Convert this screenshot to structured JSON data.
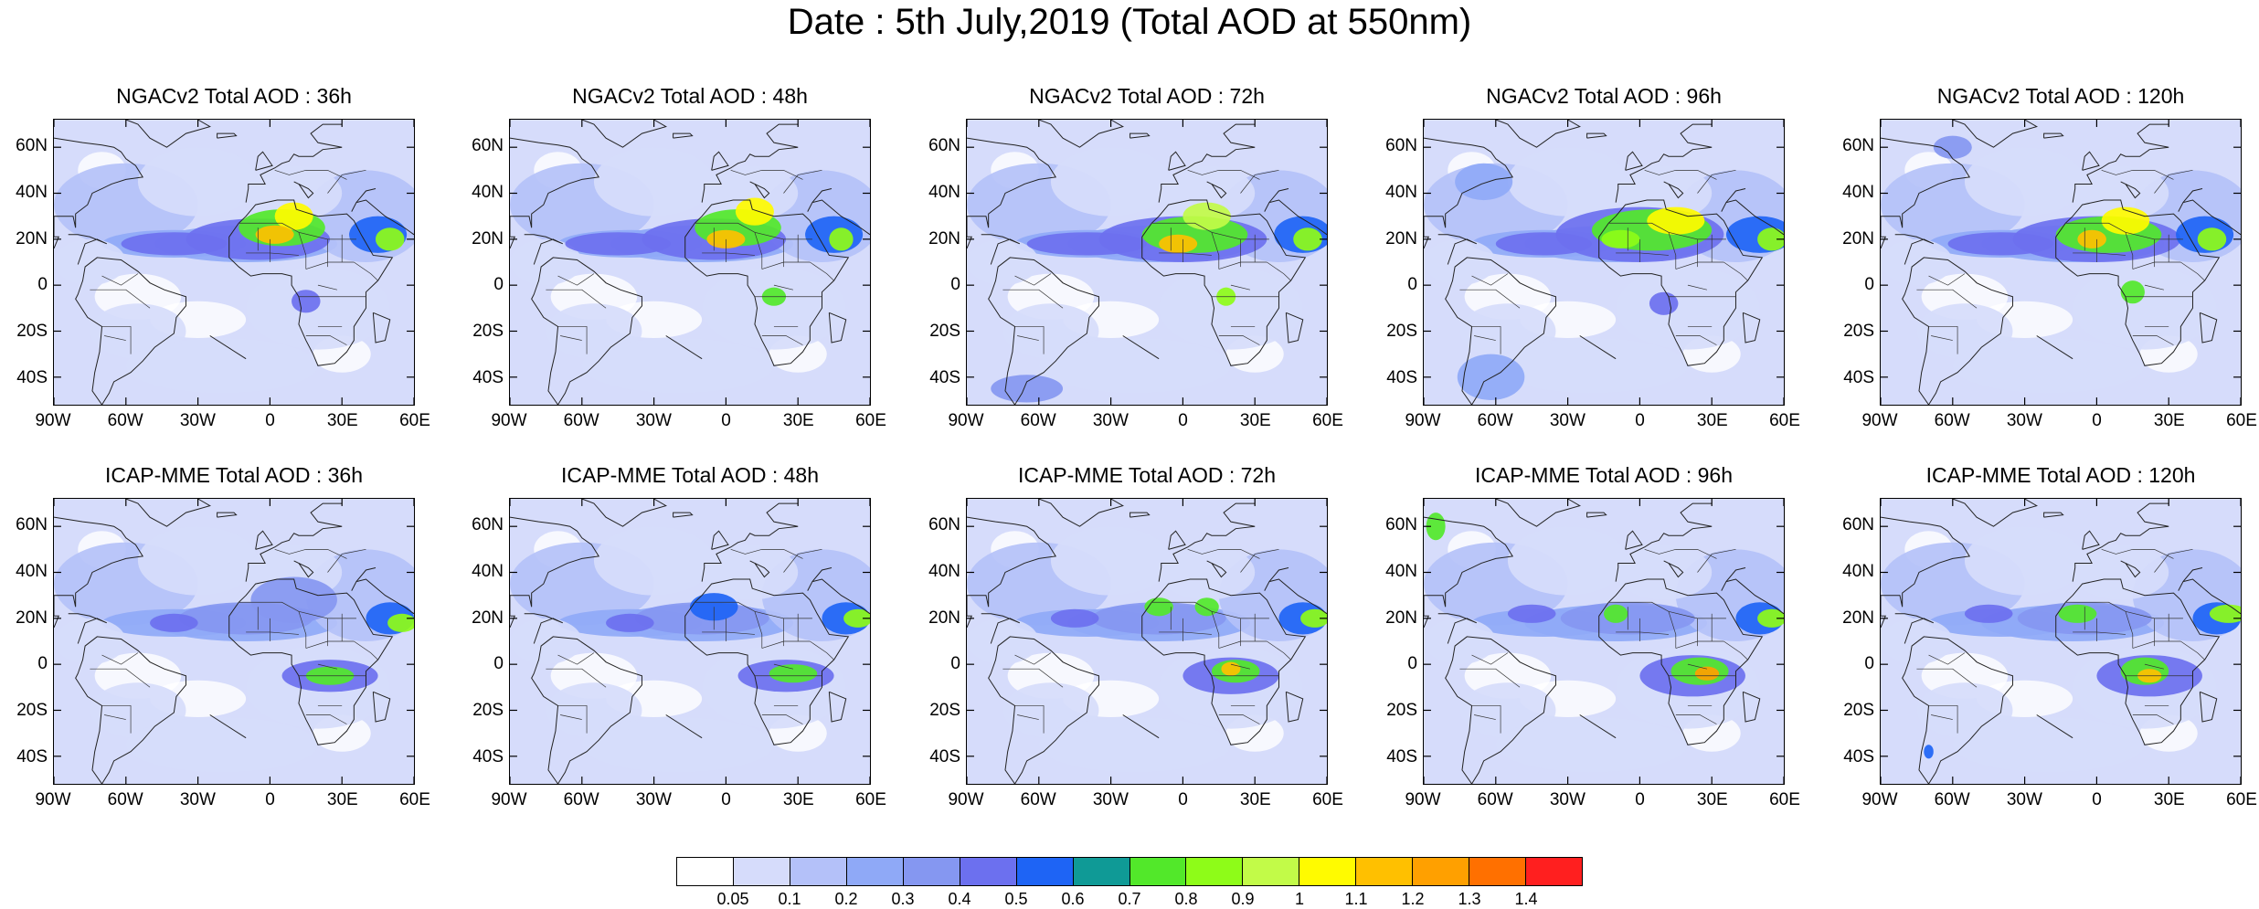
{
  "title": "Date : 5th July,2019 (Total AOD at 550nm)",
  "lat_ticks": [
    "60N",
    "40N",
    "20N",
    "0",
    "20S",
    "40S"
  ],
  "lon_ticks": [
    "90W",
    "60W",
    "30W",
    "0",
    "30E",
    "60E"
  ],
  "map_extent": {
    "lon_min": -90,
    "lon_max": 60,
    "lat_min": -52,
    "lat_max": 72
  },
  "lat_tick_values": [
    60,
    40,
    20,
    0,
    -20,
    -40
  ],
  "lon_tick_values": [
    -90,
    -60,
    -30,
    0,
    30,
    60
  ],
  "panels": [
    {
      "title": "NGACv2 Total AOD : 36h"
    },
    {
      "title": "NGACv2 Total AOD : 48h"
    },
    {
      "title": "NGACv2 Total AOD : 72h"
    },
    {
      "title": "NGACv2 Total AOD : 96h"
    },
    {
      "title": "NGACv2 Total AOD : 120h"
    },
    {
      "title": "ICAP-MME Total AOD : 36h"
    },
    {
      "title": "ICAP-MME Total AOD : 48h"
    },
    {
      "title": "ICAP-MME Total AOD : 72h"
    },
    {
      "title": "ICAP-MME Total AOD : 96h"
    },
    {
      "title": "ICAP-MME Total AOD : 120h"
    }
  ],
  "colorbar": {
    "colors": [
      "#ffffff",
      "#d6dcfb",
      "#b4c1f9",
      "#8fa9f7",
      "#8597f1",
      "#6c70ef",
      "#1e64f5",
      "#0f9a96",
      "#52e82a",
      "#8efc18",
      "#c2fb48",
      "#fffb00",
      "#ffc000",
      "#ffa000",
      "#ff7000",
      "#ff1f1f"
    ],
    "labels": [
      "0.05",
      "0.1",
      "0.2",
      "0.3",
      "0.4",
      "0.5",
      "0.6",
      "0.7",
      "0.8",
      "0.9",
      "1",
      "1.1",
      "1.2",
      "1.3",
      "1.4"
    ]
  }
}
